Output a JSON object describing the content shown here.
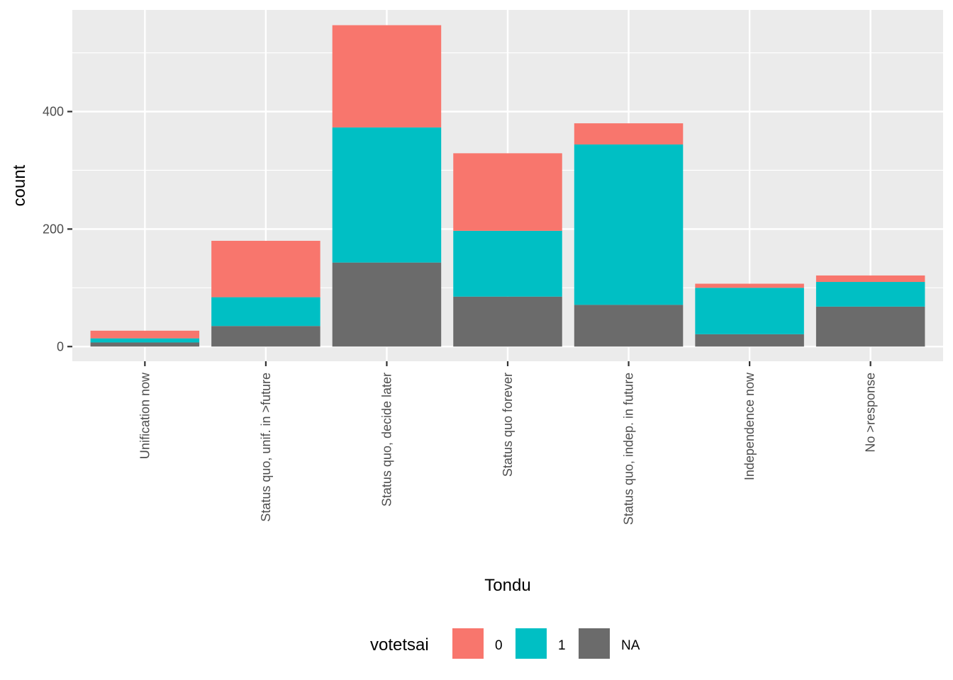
{
  "chart_data": {
    "type": "bar",
    "stacked": true,
    "categories": [
      "Unification now",
      "Status quo, unif. in >future",
      "Status quo, decide later",
      "Status quo forever",
      "Status quo, indep. in future",
      "Independence now",
      "No >response"
    ],
    "series": [
      {
        "name": "0",
        "color": "#F8766D",
        "values": [
          13,
          96,
          174,
          132,
          36,
          7,
          11
        ]
      },
      {
        "name": "1",
        "color": "#00BFC4",
        "values": [
          7,
          49,
          230,
          112,
          273,
          79,
          42
        ]
      },
      {
        "name": "NA",
        "color": "#6B6B6B",
        "values": [
          7,
          35,
          143,
          85,
          71,
          21,
          68
        ]
      }
    ],
    "xlabel": "Tondu",
    "ylabel": "count",
    "ylim": [
      -25,
      573
    ],
    "yticks": [
      0,
      200,
      400
    ],
    "grid": true,
    "legend": {
      "title": "votetsai",
      "position": "bottom"
    }
  }
}
